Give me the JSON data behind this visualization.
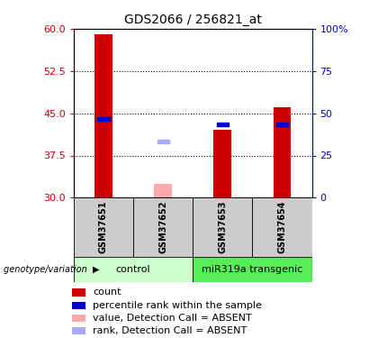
{
  "title": "GDS2066 / 256821_at",
  "samples": [
    "GSM37651",
    "GSM37652",
    "GSM37653",
    "GSM37654"
  ],
  "bar_bottom": 30,
  "red_bar_tops": [
    59.0,
    null,
    42.0,
    46.0
  ],
  "pink_bar_tops": [
    null,
    32.5,
    null,
    null
  ],
  "blue_sq_y": [
    44.0,
    null,
    43.0,
    43.0
  ],
  "lightblue_sq_y": [
    null,
    40.0,
    null,
    null
  ],
  "ylim_left": [
    30,
    60
  ],
  "yticks_left": [
    30,
    37.5,
    45,
    52.5,
    60
  ],
  "ylim_right": [
    0,
    100
  ],
  "yticks_right": [
    0,
    25,
    50,
    75,
    100
  ],
  "ytick_labels_right": [
    "0",
    "25",
    "50",
    "75",
    "100%"
  ],
  "gridline_y": [
    37.5,
    45,
    52.5
  ],
  "group1_label": "control",
  "group2_label": "miR319a transgenic",
  "group_label_prefix": "genotype/variation",
  "legend_items": [
    {
      "color": "#cc0000",
      "label": "count"
    },
    {
      "color": "#0000cc",
      "label": "percentile rank within the sample"
    },
    {
      "color": "#ffaaaa",
      "label": "value, Detection Call = ABSENT"
    },
    {
      "color": "#aaaaff",
      "label": "rank, Detection Call = ABSENT"
    }
  ],
  "bar_width": 0.3,
  "red_color": "#cc0000",
  "pink_color": "#ffaaaa",
  "blue_color": "#0000cc",
  "lightblue_color": "#aaaaff",
  "plot_bg": "#ffffff",
  "group1_color": "#ccffcc",
  "group2_color": "#55ee55",
  "sample_bg": "#cccccc",
  "left_tick_color": "#cc0000",
  "right_tick_color": "#0000cc",
  "title_fontsize": 10,
  "tick_fontsize": 8,
  "legend_fontsize": 8
}
